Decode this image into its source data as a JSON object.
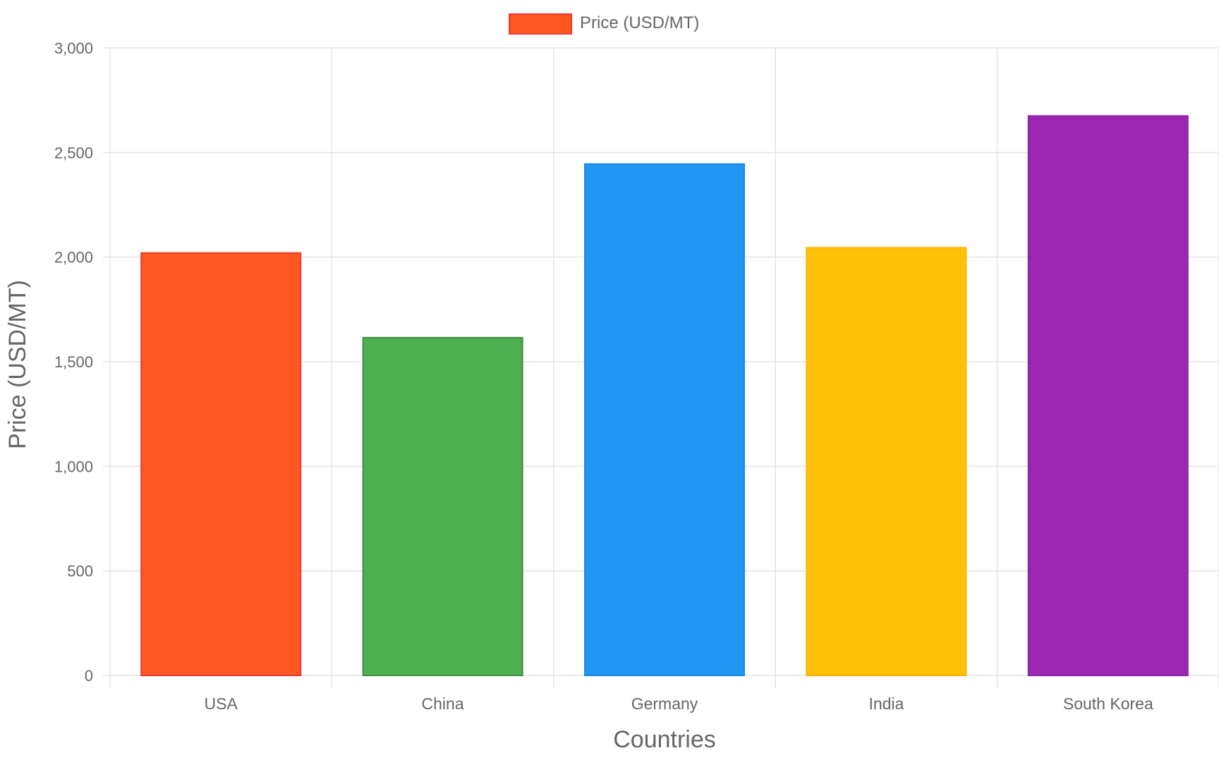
{
  "chart_data": {
    "type": "bar",
    "categories": [
      "USA",
      "China",
      "Germany",
      "India",
      "South Korea"
    ],
    "series": [
      {
        "name": "Price (USD/MT)",
        "values": [
          2020,
          1615,
          2445,
          2045,
          2675
        ],
        "colors": [
          "#FF5722",
          "#4CAF50",
          "#2196F3",
          "#FFC107",
          "#9C27B0"
        ],
        "border_colors": [
          "#E53935",
          "#3E8E41",
          "#1E88E5",
          "#FFB300",
          "#8E24AA"
        ]
      }
    ],
    "xlabel": "Countries",
    "ylabel": "Price (USD/MT)",
    "ylim": [
      0,
      3000
    ],
    "yticks": [
      0,
      500,
      1000,
      1500,
      2000,
      2500,
      3000
    ],
    "ytick_labels": [
      "0",
      "500",
      "1,000",
      "1,500",
      "2,000",
      "2,500",
      "3,000"
    ],
    "grid": true,
    "legend": {
      "position": "top-center",
      "label": "Price (USD/MT)",
      "swatch_color": "#FF5722",
      "swatch_border": "#E53935"
    }
  },
  "colors": {
    "grid": "#e5e5e5",
    "tick_text": "#666666",
    "axis_title": "#666666"
  }
}
